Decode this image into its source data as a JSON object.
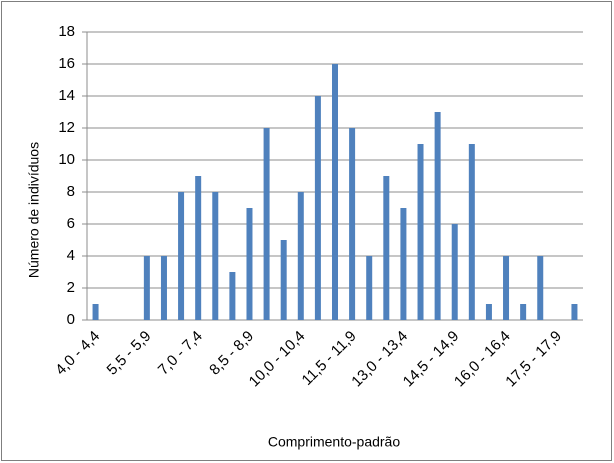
{
  "chart_data": {
    "type": "bar",
    "x_label": "Comprimento-padrão",
    "y_label": "Número de indivíduos",
    "categories": [
      "4,0 - 4,4",
      null,
      null,
      "5,5 - 5,9",
      null,
      null,
      "7,0 - 7,4",
      null,
      null,
      "8,5 - 8,9",
      null,
      null,
      "10,0 - 10,4",
      null,
      null,
      "11,5 - 11,9",
      null,
      null,
      "13,0 - 13,4",
      null,
      null,
      "14,5 - 14,9",
      null,
      null,
      "16,0 - 16,4",
      null,
      null,
      "17,5 - 17,9",
      null
    ],
    "values": [
      1,
      0,
      0,
      4,
      4,
      8,
      9,
      8,
      3,
      7,
      12,
      5,
      8,
      14,
      16,
      12,
      4,
      9,
      7,
      11,
      13,
      6,
      11,
      1,
      4,
      1,
      4,
      0,
      1
    ],
    "color": "#4f81bd",
    "ylim": [
      0,
      18
    ],
    "yticks": [
      0,
      2,
      4,
      6,
      8,
      10,
      12,
      14,
      16,
      18
    ],
    "grid": true
  }
}
